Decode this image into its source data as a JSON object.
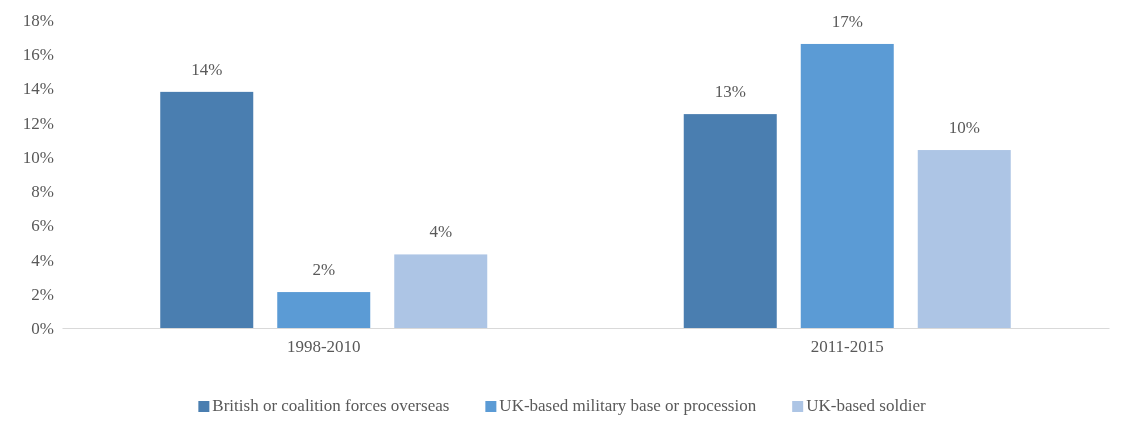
{
  "chart_data": {
    "type": "bar",
    "categories": [
      "1998-2010",
      "2011-2015"
    ],
    "series": [
      {
        "name": "British or coalition forces overseas",
        "color": "#4a7eb0",
        "values": [
          13.8,
          12.5
        ],
        "value_labels": [
          "14%",
          "13%"
        ]
      },
      {
        "name": "UK-based military base or procession",
        "color": "#5b9bd5",
        "values": [
          2.1,
          16.6
        ],
        "value_labels": [
          "2%",
          "17%"
        ]
      },
      {
        "name": "UK-based soldier",
        "color": "#adc5e5",
        "values": [
          4.3,
          10.4
        ],
        "value_labels": [
          "4%",
          "10%"
        ]
      }
    ],
    "ylim": [
      0,
      18
    ],
    "yticks": [
      {
        "value": 0,
        "label": "0%"
      },
      {
        "value": 2,
        "label": "2%"
      },
      {
        "value": 4,
        "label": "4%"
      },
      {
        "value": 6,
        "label": "6%"
      },
      {
        "value": 8,
        "label": "8%"
      },
      {
        "value": 10,
        "label": "10%"
      },
      {
        "value": 12,
        "label": "12%"
      },
      {
        "value": 14,
        "label": "14%"
      },
      {
        "value": 16,
        "label": "16%"
      },
      {
        "value": 18,
        "label": "18%"
      }
    ],
    "legend": "bottom"
  }
}
